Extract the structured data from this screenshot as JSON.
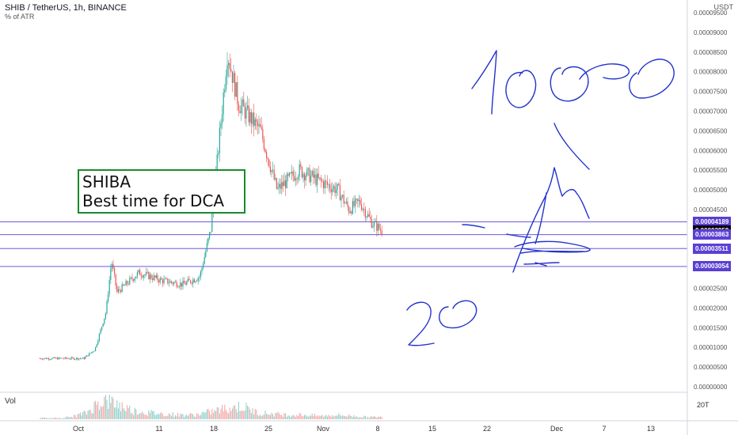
{
  "header": {
    "title": "SHIB / TetherUS, 1h, BINANCE",
    "indicator": "% of ATR",
    "unit": "USDT"
  },
  "annotation": {
    "line1": "SHIBA",
    "line2": "Best time for DCA"
  },
  "volume_label": "Vol",
  "volume_axis_label": "20T",
  "colors": {
    "up": "#26a69a",
    "down": "#ef5350",
    "hline": "#5b3fd4",
    "ink": "#2233cc",
    "annotation_border": "#1b8a2a"
  },
  "price_labels": [
    {
      "value": "0.00004189",
      "y": 4.189e-05,
      "style": "level"
    },
    {
      "value": "0.00003959",
      "y": 3.959e-05,
      "style": "current"
    },
    {
      "value": "0.00003863",
      "y": 3.863e-05,
      "style": "level"
    },
    {
      "value": "0.00003511",
      "y": 3.511e-05,
      "style": "level"
    },
    {
      "value": "0.00003054",
      "y": 3.054e-05,
      "style": "level"
    }
  ],
  "handwriting": [
    "1000",
    "20"
  ],
  "chart_data": {
    "type": "candlestick",
    "x_ticks": [
      "Oct",
      "11",
      "18",
      "25",
      "Nov",
      "8",
      "15",
      "22",
      "Dec",
      "7",
      "13"
    ],
    "y_ticks": [
      "0.00009500",
      "0.00009000",
      "0.00008500",
      "0.00008000",
      "0.00007500",
      "0.00007000",
      "0.00006500",
      "0.00006000",
      "0.00005500",
      "0.00005000",
      "0.00004500",
      "0.00004000",
      "0.00003500",
      "0.00003000",
      "0.00002500",
      "0.00002000",
      "0.00001500",
      "0.00001000",
      "0.00000500",
      "0.00000000"
    ],
    "ylim": [
      0,
      9.5e-05
    ],
    "horizontal_levels": [
      4.189e-05,
      3.863e-05,
      3.511e-05,
      3.054e-05
    ],
    "close_path": [
      {
        "x": "2021-09-24",
        "y": 7.2e-06
      },
      {
        "x": "2021-10-02",
        "y": 7.2e-06
      },
      {
        "x": "2021-10-04",
        "y": 9.5e-06
      },
      {
        "x": "2021-10-06",
        "y": 1.9e-05
      },
      {
        "x": "2021-10-07",
        "y": 3.2e-05
      },
      {
        "x": "2021-10-08",
        "y": 2.4e-05
      },
      {
        "x": "2021-10-12",
        "y": 2.9e-05
      },
      {
        "x": "2021-10-16",
        "y": 2.7e-05
      },
      {
        "x": "2021-10-20",
        "y": 2.6e-05
      },
      {
        "x": "2021-10-23",
        "y": 2.8e-05
      },
      {
        "x": "2021-10-25",
        "y": 4e-05
      },
      {
        "x": "2021-10-26",
        "y": 5.5e-05
      },
      {
        "x": "2021-10-28",
        "y": 8.5e-05
      },
      {
        "x": "2021-10-30",
        "y": 7.2e-05
      },
      {
        "x": "2021-11-03",
        "y": 6.5e-05
      },
      {
        "x": "2021-11-06",
        "y": 5e-05
      },
      {
        "x": "2021-11-10",
        "y": 5.5e-05
      },
      {
        "x": "2021-11-14",
        "y": 5.2e-05
      },
      {
        "x": "2021-11-17",
        "y": 5e-05
      },
      {
        "x": "2021-11-19",
        "y": 4.5e-05
      },
      {
        "x": "2021-11-21",
        "y": 4.7e-05
      },
      {
        "x": "2021-11-23",
        "y": 4.2e-05
      },
      {
        "x": "2021-11-25",
        "y": 3.959e-05
      }
    ],
    "volume_relative": [
      0.05,
      0.05,
      0.1,
      0.3,
      0.9,
      0.7,
      0.4,
      0.3,
      0.25,
      0.2,
      0.2,
      0.35,
      0.5,
      0.6,
      0.3,
      0.25,
      0.2,
      0.2,
      0.15,
      0.2,
      0.15,
      0.1,
      0.1
    ]
  }
}
